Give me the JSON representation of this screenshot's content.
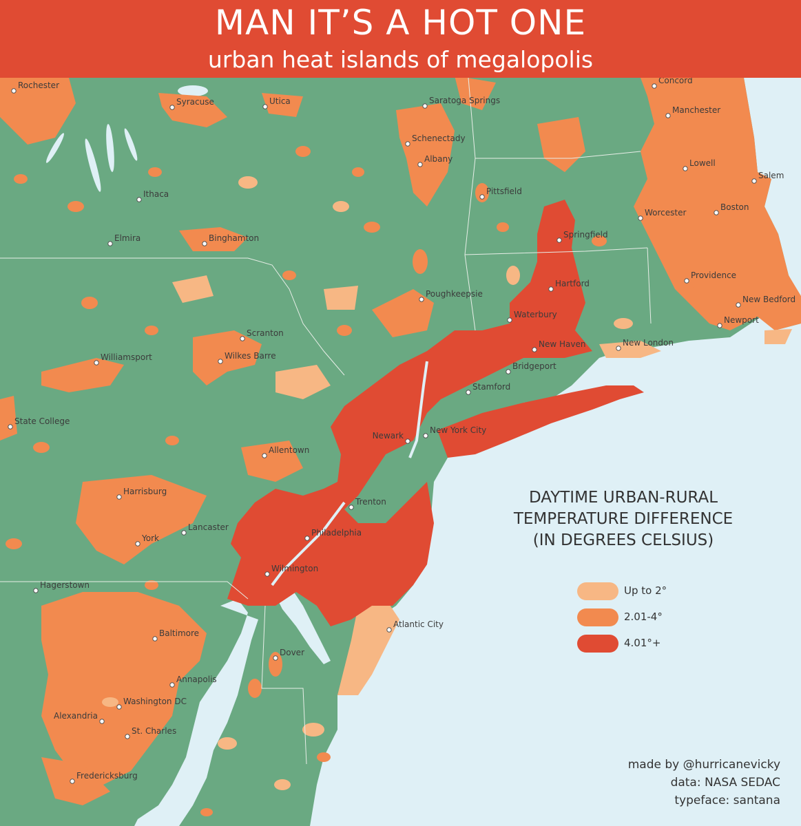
{
  "title": "MAN IT’S A HOT ONE",
  "subtitle": "urban heat islands of megalopolis",
  "legend": {
    "title_lines": [
      "DAYTIME URBAN-RURAL",
      "TEMPERATURE DIFFERENCE",
      "(IN DEGREES CELSIUS)"
    ],
    "items": [
      {
        "label": "Up to 2°",
        "color": "#f7b784"
      },
      {
        "label": "2.01-4°",
        "color": "#f28a4f"
      },
      {
        "label": "4.01°+",
        "color": "#e04b33"
      }
    ]
  },
  "colors": {
    "land": "#6aa982",
    "water": "#dff0f6",
    "low": "#f7b784",
    "mid": "#f28a4f",
    "high": "#e04b33"
  },
  "cities": [
    {
      "name": "Rochester"
    },
    {
      "name": "Syracuse"
    },
    {
      "name": "Utica"
    },
    {
      "name": "Saratoga Springs"
    },
    {
      "name": "Concord"
    },
    {
      "name": "Manchester"
    },
    {
      "name": "Schenectady"
    },
    {
      "name": "Albany"
    },
    {
      "name": "Lowell"
    },
    {
      "name": "Salem"
    },
    {
      "name": "Ithaca"
    },
    {
      "name": "Pittsfield"
    },
    {
      "name": "Boston"
    },
    {
      "name": "Worcester"
    },
    {
      "name": "Springfield"
    },
    {
      "name": "Elmira"
    },
    {
      "name": "Binghamton"
    },
    {
      "name": "Providence"
    },
    {
      "name": "Hartford"
    },
    {
      "name": "Poughkeepsie"
    },
    {
      "name": "New Bedford"
    },
    {
      "name": "Waterbury"
    },
    {
      "name": "Newport"
    },
    {
      "name": "New Haven"
    },
    {
      "name": "New London"
    },
    {
      "name": "Scranton"
    },
    {
      "name": "Wilkes Barre"
    },
    {
      "name": "Williamsport"
    },
    {
      "name": "Bridgeport"
    },
    {
      "name": "Stamford"
    },
    {
      "name": "State College"
    },
    {
      "name": "New York City"
    },
    {
      "name": "Newark"
    },
    {
      "name": "Allentown"
    },
    {
      "name": "Harrisburg"
    },
    {
      "name": "Trenton"
    },
    {
      "name": "Lancaster"
    },
    {
      "name": "Philadelphia"
    },
    {
      "name": "York"
    },
    {
      "name": "Wilmington"
    },
    {
      "name": "Hagerstown"
    },
    {
      "name": "Atlantic City"
    },
    {
      "name": "Baltimore"
    },
    {
      "name": "Dover"
    },
    {
      "name": "Annapolis"
    },
    {
      "name": "Washington DC"
    },
    {
      "name": "Alexandria"
    },
    {
      "name": "St. Charles"
    },
    {
      "name": "Fredericksburg"
    }
  ],
  "credits": [
    "made by @hurricanevicky",
    "data: NASA SEDAC",
    "typeface: santana"
  ]
}
